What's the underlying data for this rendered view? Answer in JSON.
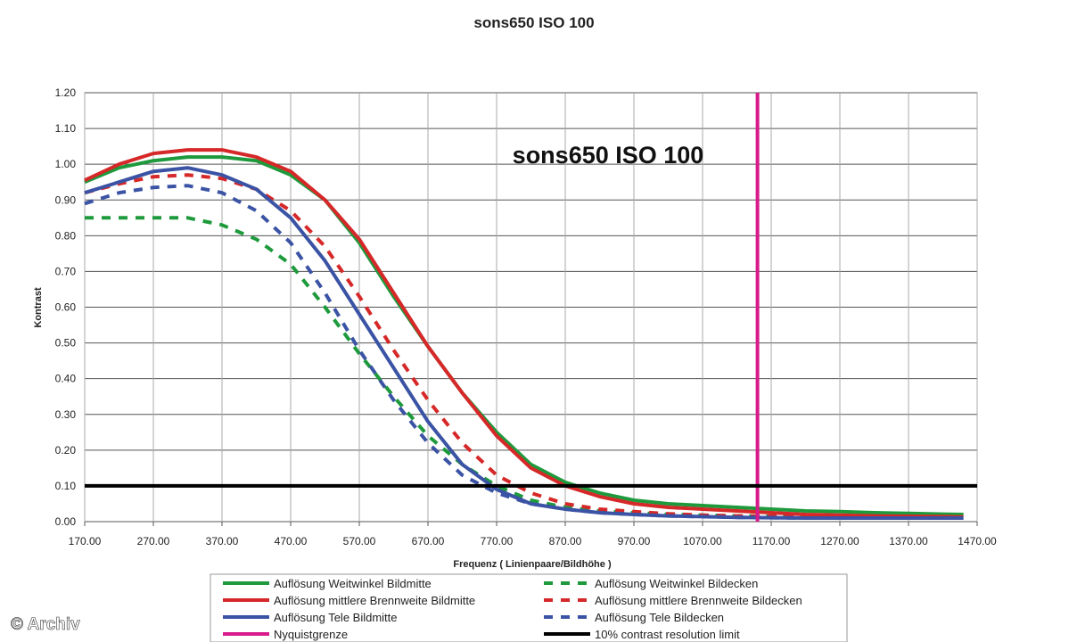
{
  "chart_data": {
    "type": "line",
    "title": "sons650 ISO 100",
    "inner_title": "sons650 ISO 100",
    "xlabel": "Frequenz ( Linienpaare/Bildhöhe )",
    "ylabel": "Kontrast",
    "xlim": [
      170,
      1470
    ],
    "ylim": [
      0,
      1.2
    ],
    "x_ticks": [
      "170.00",
      "270.00",
      "370.00",
      "470.00",
      "570.00",
      "670.00",
      "770.00",
      "870.00",
      "970.00",
      "1070.00",
      "1170.00",
      "1270.00",
      "1370.00",
      "1470.00"
    ],
    "y_ticks": [
      "0.00",
      "0.10",
      "0.20",
      "0.30",
      "0.40",
      "0.50",
      "0.60",
      "0.70",
      "0.80",
      "0.90",
      "1.00",
      "1.10",
      "1.20"
    ],
    "grid": true,
    "series": [
      {
        "name": "Auflösung Weitwinkel Bildmitte",
        "color": "#1e9a3c",
        "dash": false,
        "x": [
          170,
          220,
          270,
          320,
          370,
          420,
          470,
          520,
          570,
          620,
          670,
          720,
          770,
          820,
          870,
          920,
          970,
          1020,
          1070,
          1120,
          1170,
          1220,
          1270,
          1320,
          1370,
          1420,
          1450
        ],
        "y": [
          0.95,
          0.99,
          1.01,
          1.02,
          1.02,
          1.01,
          0.97,
          0.9,
          0.78,
          0.63,
          0.49,
          0.36,
          0.25,
          0.16,
          0.11,
          0.08,
          0.06,
          0.05,
          0.045,
          0.04,
          0.035,
          0.03,
          0.028,
          0.025,
          0.023,
          0.021,
          0.02
        ]
      },
      {
        "name": "Auflösung mittlere Brennweite Bildmitte",
        "color": "#d62828",
        "dash": false,
        "x": [
          170,
          220,
          270,
          320,
          370,
          420,
          470,
          520,
          570,
          620,
          670,
          720,
          770,
          820,
          870,
          920,
          970,
          1020,
          1070,
          1120,
          1170,
          1220,
          1270,
          1320,
          1370,
          1420,
          1450
        ],
        "y": [
          0.955,
          1.0,
          1.03,
          1.04,
          1.04,
          1.02,
          0.98,
          0.9,
          0.79,
          0.64,
          0.49,
          0.36,
          0.24,
          0.15,
          0.1,
          0.07,
          0.05,
          0.04,
          0.035,
          0.03,
          0.025,
          0.02,
          0.018,
          0.016,
          0.015,
          0.014,
          0.013
        ]
      },
      {
        "name": "Auflösung Tele Bildmitte",
        "color": "#3b53a4",
        "dash": false,
        "x": [
          170,
          220,
          270,
          320,
          370,
          420,
          470,
          520,
          570,
          620,
          670,
          720,
          770,
          820,
          870,
          920,
          970,
          1020,
          1070,
          1120,
          1170,
          1220,
          1270,
          1320,
          1370,
          1420,
          1450
        ],
        "y": [
          0.92,
          0.95,
          0.98,
          0.99,
          0.97,
          0.93,
          0.85,
          0.73,
          0.58,
          0.43,
          0.28,
          0.16,
          0.09,
          0.05,
          0.035,
          0.025,
          0.02,
          0.016,
          0.014,
          0.012,
          0.011,
          0.01,
          0.01,
          0.01,
          0.01,
          0.01,
          0.01
        ]
      },
      {
        "name": "Auflösung Weitwinkel Bildecken",
        "color": "#1e9a3c",
        "dash": true,
        "x": [
          170,
          220,
          270,
          320,
          370,
          420,
          470,
          520,
          570,
          620,
          670,
          720,
          770,
          820,
          870,
          920,
          970,
          1020,
          1070,
          1120,
          1170,
          1220,
          1270
        ],
        "y": [
          0.85,
          0.85,
          0.85,
          0.85,
          0.83,
          0.79,
          0.72,
          0.6,
          0.47,
          0.35,
          0.24,
          0.16,
          0.1,
          0.06,
          0.04,
          0.03,
          0.025,
          0.02,
          0.018,
          0.016,
          0.015,
          0.015,
          0.015
        ]
      },
      {
        "name": "Auflösung mittlere Brennweite Bildecken",
        "color": "#d62828",
        "dash": true,
        "x": [
          170,
          220,
          270,
          320,
          370,
          420,
          470,
          520,
          570,
          620,
          670,
          720,
          770,
          820,
          870,
          920,
          970,
          1020,
          1070,
          1120,
          1170,
          1220,
          1270
        ],
        "y": [
          0.92,
          0.945,
          0.965,
          0.97,
          0.96,
          0.93,
          0.87,
          0.77,
          0.63,
          0.48,
          0.34,
          0.22,
          0.13,
          0.08,
          0.05,
          0.035,
          0.028,
          0.022,
          0.018,
          0.016,
          0.015,
          0.014,
          0.013
        ]
      },
      {
        "name": "Auflösung Tele Bildecken",
        "color": "#3b53a4",
        "dash": true,
        "x": [
          170,
          220,
          270,
          320,
          370,
          420,
          470,
          520,
          570,
          620,
          670,
          720,
          770,
          820,
          870,
          920,
          970,
          1020,
          1070,
          1120,
          1170,
          1220,
          1270
        ],
        "y": [
          0.89,
          0.92,
          0.935,
          0.94,
          0.92,
          0.87,
          0.78,
          0.64,
          0.48,
          0.34,
          0.22,
          0.13,
          0.08,
          0.05,
          0.035,
          0.025,
          0.02,
          0.016,
          0.014,
          0.012,
          0.011,
          0.01,
          0.01
        ]
      }
    ],
    "reference_lines": [
      {
        "name": "Nyquistgrenze",
        "orientation": "vertical",
        "value": 1150,
        "color": "#d81b8c"
      },
      {
        "name": "10% contrast resolution limit",
        "orientation": "horizontal",
        "value": 0.1,
        "color": "#000000"
      }
    ],
    "legend": {
      "placement": "bottom",
      "entries": [
        {
          "label": "Auflösung Weitwinkel Bildmitte",
          "color": "#1e9a3c",
          "dash": false
        },
        {
          "label": "Auflösung Weitwinkel Bildecken",
          "color": "#1e9a3c",
          "dash": true
        },
        {
          "label": "Auflösung mittlere Brennweite Bildmitte",
          "color": "#d62828",
          "dash": false
        },
        {
          "label": "Auflösung mittlere Brennweite Bildecken",
          "color": "#d62828",
          "dash": true
        },
        {
          "label": "Auflösung Tele Bildmitte",
          "color": "#3b53a4",
          "dash": false
        },
        {
          "label": "Auflösung Tele Bildecken",
          "color": "#3b53a4",
          "dash": true
        },
        {
          "label": "Nyquistgrenze",
          "color": "#d81b8c",
          "dash": false
        },
        {
          "label": "10% contrast resolution limit",
          "color": "#000000",
          "dash": false
        }
      ]
    }
  },
  "watermark": "© Archiv"
}
